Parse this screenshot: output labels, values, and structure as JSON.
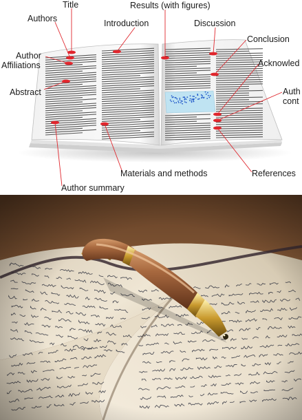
{
  "anatomy": {
    "labels": {
      "title": "Title",
      "authors": "Authors",
      "results": "Results (with figures)",
      "introduction": "Introduction",
      "discussion": "Discussion",
      "conclusion": "Conclusion",
      "author_affiliations_line1": "Author",
      "author_affiliations_line2": "Affiliations",
      "acknowledgements": "Acknowled",
      "abstract": "Abstract",
      "author_contributions_line1": "Auth",
      "author_contributions_line2": "cont",
      "materials_and_methods": "Materials and methods",
      "references": "References",
      "author_summary": "Author summary"
    },
    "colors": {
      "marker": "#e0262d",
      "leader": "#e0262d",
      "figure": "#bfe3f2",
      "figure_dots": "#1f57c9"
    }
  },
  "photo": {
    "subject": "pen-on-handwritten-notebook-photo"
  }
}
